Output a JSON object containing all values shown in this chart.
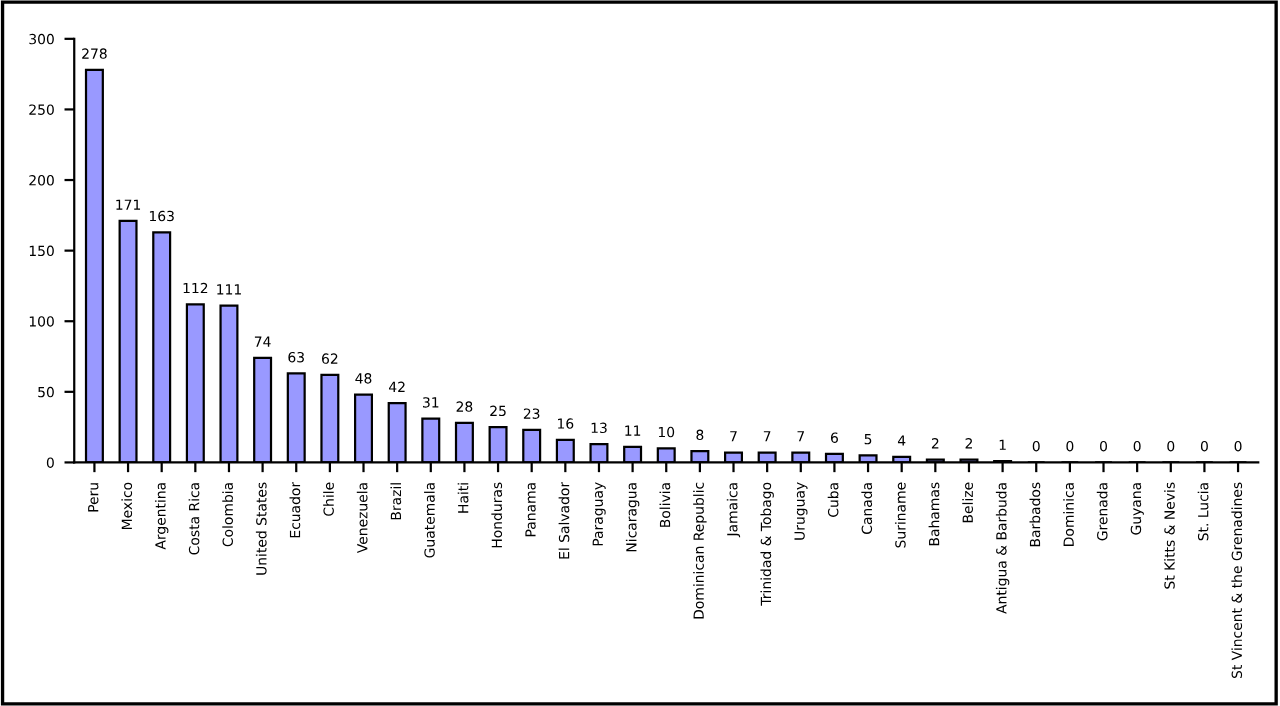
{
  "chart_data": {
    "type": "bar",
    "categories": [
      "Peru",
      "Mexico",
      "Argentina",
      "Costa Rica",
      "Colombia",
      "United States",
      "Ecuador",
      "Chile",
      "Venezuela",
      "Brazil",
      "Guatemala",
      "Haiti",
      "Honduras",
      "Panama",
      "El Salvador",
      "Paraguay",
      "Nicaragua",
      "Bolivia",
      "Dominican Republic",
      "Jamaica",
      "Trinidad & Tobago",
      "Uruguay",
      "Cuba",
      "Canada",
      "Suriname",
      "Bahamas",
      "Belize",
      "Antigua & Barbuda",
      "Barbados",
      "Dominica",
      "Grenada",
      "Guyana",
      "St Kitts & Nevis",
      "St. Lucia",
      "St Vincent & the Grenadines"
    ],
    "values": [
      278,
      171,
      163,
      112,
      111,
      74,
      63,
      62,
      48,
      42,
      31,
      28,
      25,
      23,
      16,
      13,
      11,
      10,
      8,
      7,
      7,
      7,
      6,
      5,
      4,
      2,
      2,
      1,
      0,
      0,
      0,
      0,
      0,
      0,
      0
    ],
    "color": "#9999ff",
    "ylim": [
      0,
      300
    ],
    "yticks": [
      0,
      50,
      100,
      150,
      200,
      250,
      300
    ],
    "grid": false,
    "legend": false,
    "data_labels": true
  }
}
